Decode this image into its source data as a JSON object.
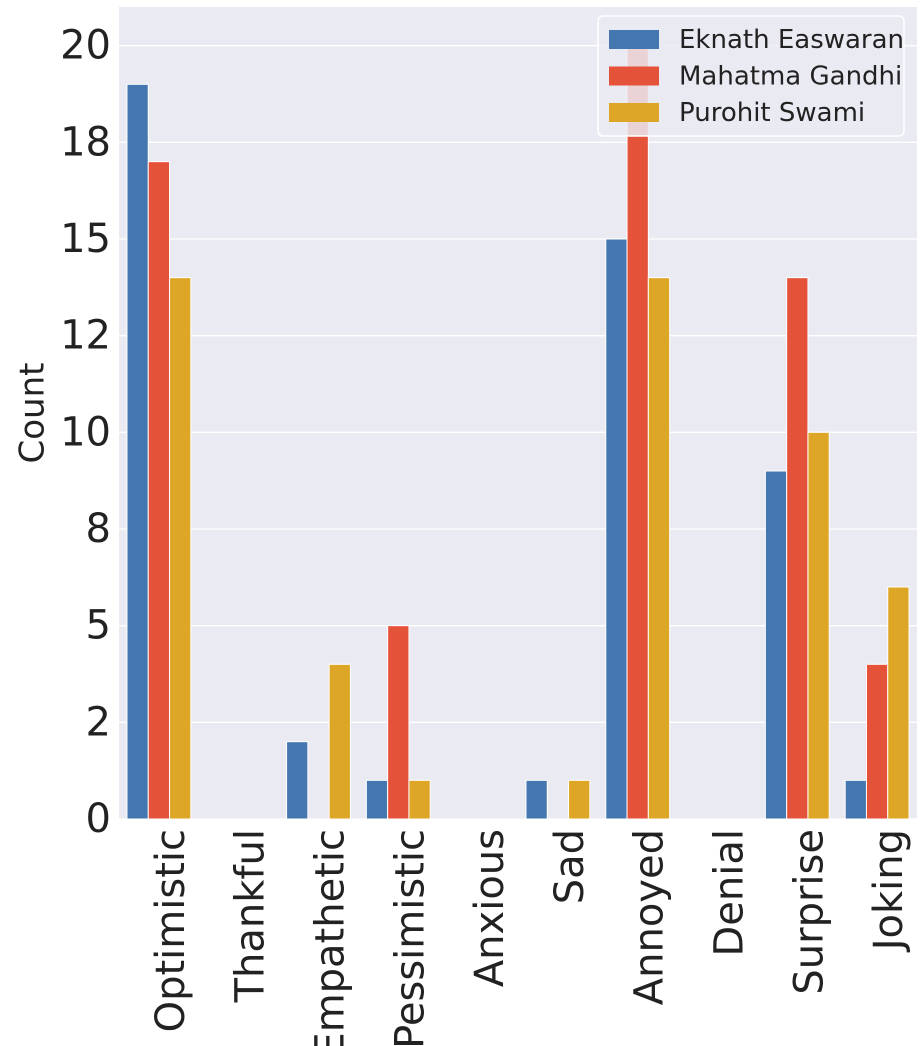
{
  "chart_data": {
    "type": "bar",
    "title": "",
    "xlabel": "",
    "ylabel": "Count",
    "ylim": [
      0,
      21
    ],
    "yticks": [
      0,
      2.5,
      5,
      7.5,
      10,
      12.5,
      15,
      17.5,
      20
    ],
    "ytick_labels": [
      "0",
      "2",
      "5",
      "8",
      "10",
      "12",
      "15",
      "18",
      "20"
    ],
    "grid": true,
    "legend_position": "top-right",
    "categories": [
      "Optimistic",
      "Thankful",
      "Empathetic",
      "Pessimistic",
      "Anxious",
      "Sad",
      "Annoyed",
      "Denial",
      "Surprise",
      "Joking"
    ],
    "series": [
      {
        "name": "Eknath Easwaran",
        "color": "#4477b0",
        "values": [
          19,
          0,
          2,
          1,
          0,
          1,
          15,
          0,
          9,
          1
        ]
      },
      {
        "name": "Mahatma Gandhi",
        "color": "#e4523a",
        "values": [
          17,
          0,
          0,
          5,
          0,
          0,
          20,
          0,
          14,
          4
        ]
      },
      {
        "name": "Purohit Swami",
        "color": "#dea627",
        "values": [
          14,
          0,
          4,
          1,
          0,
          1,
          14,
          0,
          10,
          6
        ]
      }
    ],
    "colors": {
      "background": "#eaeaf2",
      "grid": "#ffffff"
    }
  }
}
